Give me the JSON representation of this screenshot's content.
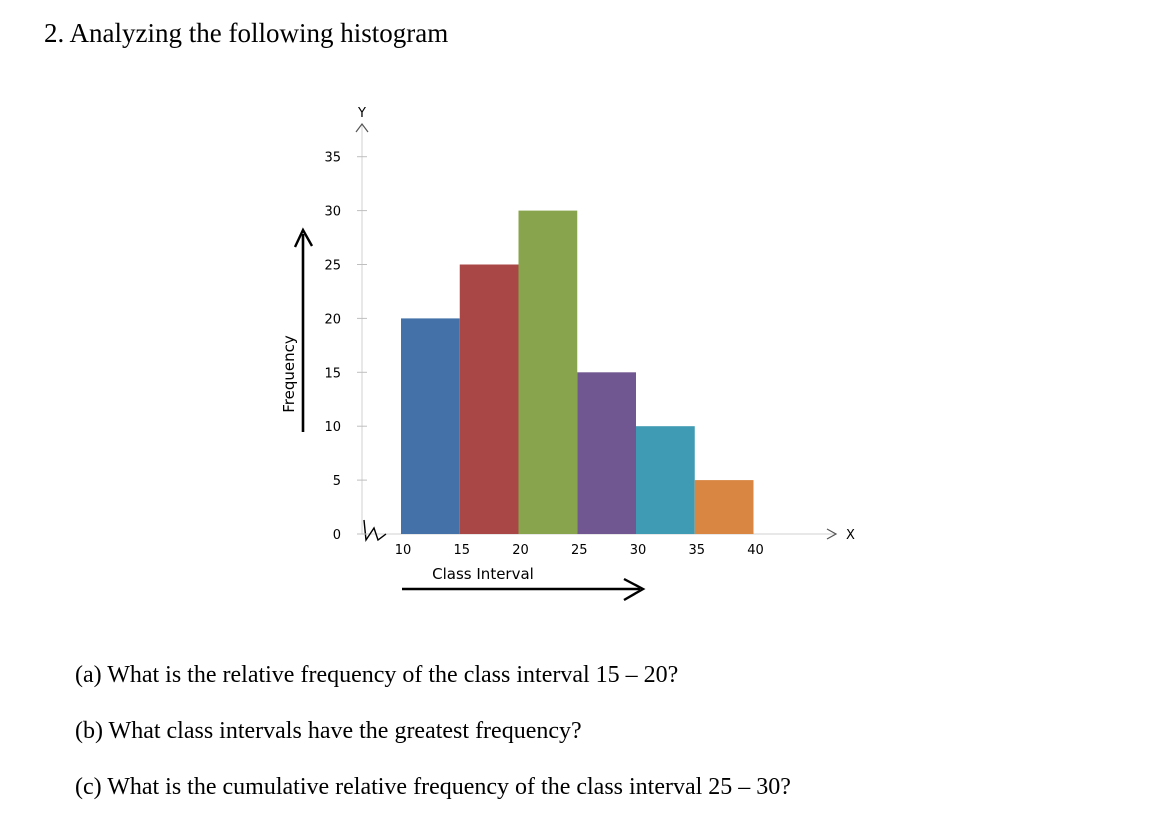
{
  "question": {
    "title": "2.  Analyzing the following histogram"
  },
  "chart_data": {
    "type": "bar",
    "x_ticks": [
      10,
      15,
      20,
      25,
      30,
      35,
      40
    ],
    "bins": [
      {
        "from": 10,
        "to": 15,
        "value": 20,
        "color": "#4472a8"
      },
      {
        "from": 15,
        "to": 20,
        "value": 25,
        "color": "#a84746"
      },
      {
        "from": 20,
        "to": 25,
        "value": 30,
        "color": "#88a54d"
      },
      {
        "from": 25,
        "to": 30,
        "value": 15,
        "color": "#715792"
      },
      {
        "from": 30,
        "to": 35,
        "value": 10,
        "color": "#3f9bb3"
      },
      {
        "from": 35,
        "to": 40,
        "value": 5,
        "color": "#d98643"
      }
    ],
    "y_ticks": [
      0,
      5,
      10,
      15,
      20,
      25,
      30,
      35
    ],
    "ylim": [
      0,
      35
    ],
    "xlabel": "Class Interval",
    "ylabel": "Frequency",
    "y_axis_letter": "Y",
    "x_axis_letter": "X",
    "grid": false
  },
  "questions": {
    "a": "(a) What is the relative frequency of the class interval 15 – 20?",
    "b": "(b) What class intervals have the greatest frequency?",
    "c": "(c) What is the cumulative relative frequency of the class interval 25 – 30?"
  }
}
